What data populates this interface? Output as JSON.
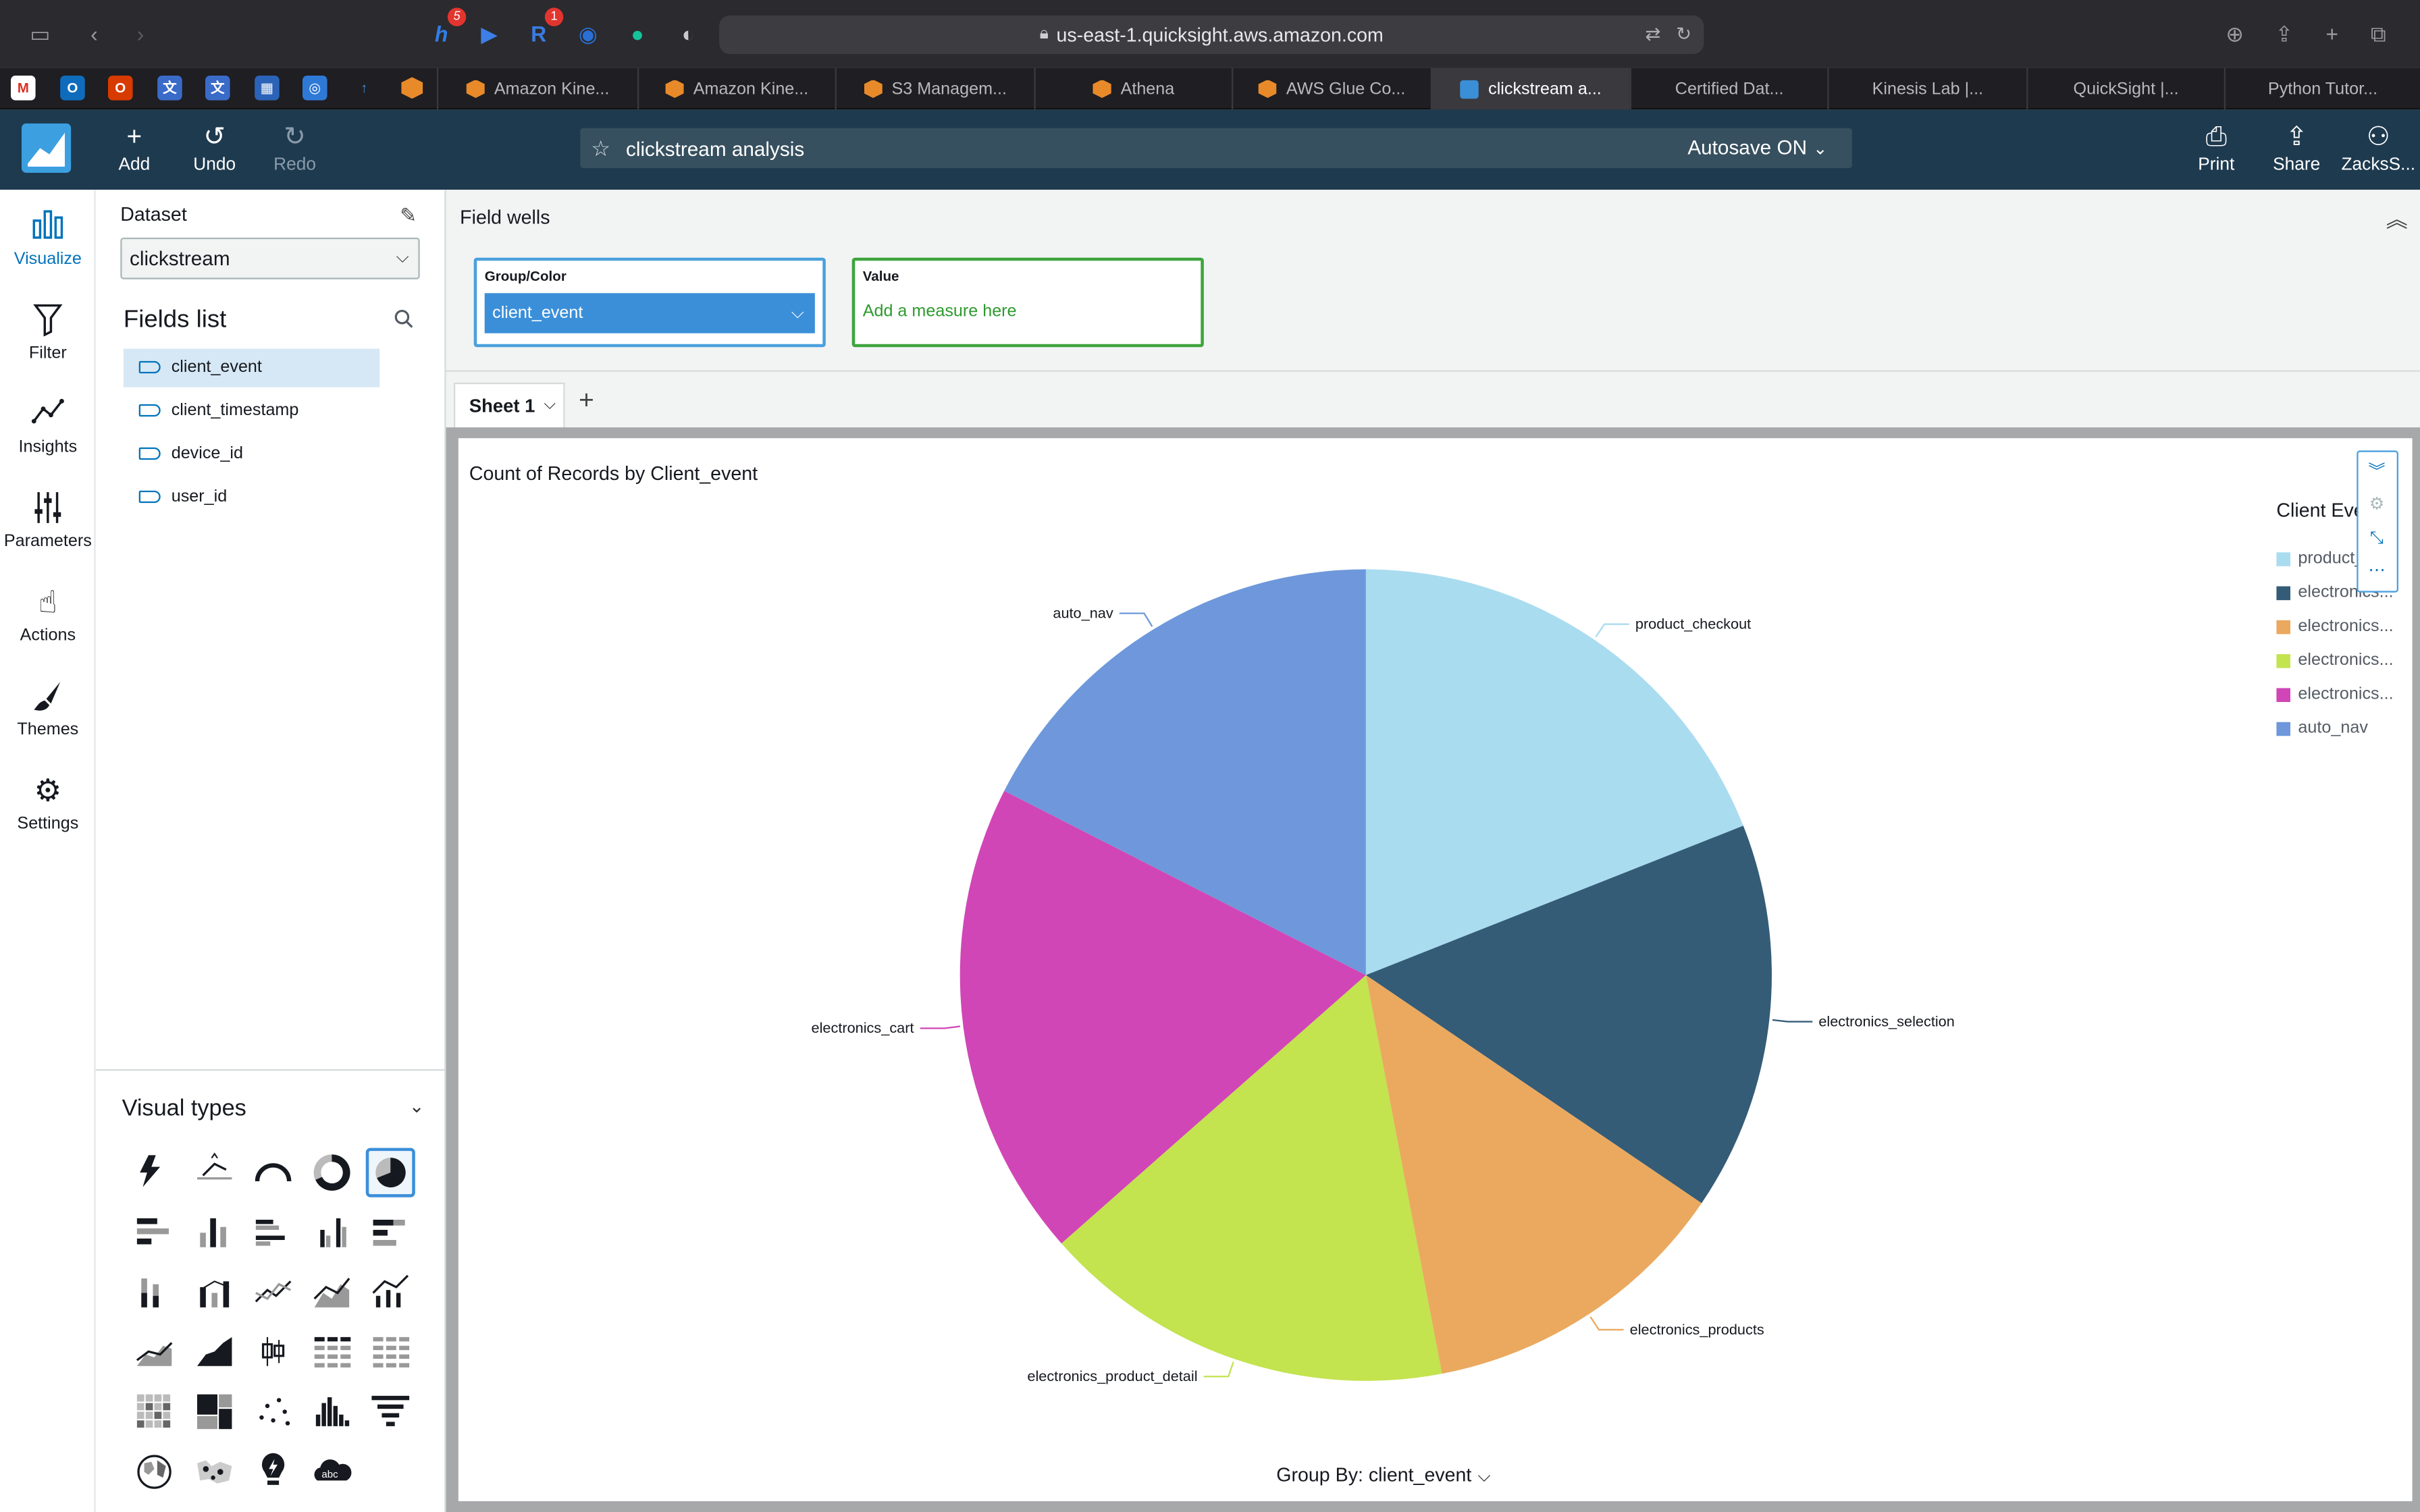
{
  "browser": {
    "url": "us-east-1.quicksight.aws.amazon.com",
    "extensions": [
      {
        "icon": "honey-icon",
        "badge": "5"
      },
      {
        "icon": "forward-icon",
        "badge": ""
      },
      {
        "icon": "r-icon",
        "badge": "1"
      },
      {
        "icon": "onepassword-icon",
        "badge": ""
      },
      {
        "icon": "grammarly-icon",
        "badge": ""
      },
      {
        "icon": "shield-icon",
        "badge": ""
      }
    ],
    "tabs": [
      {
        "label": "Amazon Kine...",
        "favicon": "aws",
        "active": false
      },
      {
        "label": "Amazon Kine...",
        "favicon": "aws",
        "active": false
      },
      {
        "label": "S3 Managem...",
        "favicon": "aws",
        "active": false
      },
      {
        "label": "Athena",
        "favicon": "aws",
        "active": false
      },
      {
        "label": "AWS Glue Co...",
        "favicon": "aws",
        "active": false
      },
      {
        "label": "clickstream a...",
        "favicon": "quicksight",
        "active": true
      },
      {
        "label": "Certified Dat...",
        "favicon": "none",
        "active": false
      },
      {
        "label": "Kinesis Lab |...",
        "favicon": "none",
        "active": false
      },
      {
        "label": "QuickSight |...",
        "favicon": "none",
        "active": false
      },
      {
        "label": "Python Tutor...",
        "favicon": "none",
        "active": false
      }
    ]
  },
  "header": {
    "add_label": "Add",
    "undo_label": "Undo",
    "redo_label": "Redo",
    "analysis_name": "clickstream analysis",
    "autosave_label": "Autosave ON",
    "print_label": "Print",
    "share_label": "Share",
    "user_label": "ZacksS..."
  },
  "rail": {
    "visualize": "Visualize",
    "filter": "Filter",
    "insights": "Insights",
    "parameters": "Parameters",
    "actions": "Actions",
    "themes": "Themes",
    "settings": "Settings"
  },
  "panel": {
    "dataset_label": "Dataset",
    "dataset_value": "clickstream",
    "fields_title": "Fields list",
    "fields": [
      "client_event",
      "client_timestamp",
      "device_id",
      "user_id"
    ],
    "visual_types_title": "Visual types"
  },
  "field_wells": {
    "label": "Field wells",
    "group_label": "Group/Color",
    "group_value": "client_event",
    "value_label": "Value",
    "value_placeholder": "Add a measure here"
  },
  "sheet": {
    "tab_label": "Sheet 1"
  },
  "visual": {
    "group_by_label": "Group By: client_event",
    "legend_title": "Client Eve",
    "legend_items": [
      {
        "label": "product_...",
        "color": "#aadcf0"
      },
      {
        "label": "electronics...",
        "color": "#345c77"
      },
      {
        "label": "electronics...",
        "color": "#eaa95f"
      },
      {
        "label": "electronics...",
        "color": "#c3e34f"
      },
      {
        "label": "electronics...",
        "color": "#d146b6"
      },
      {
        "label": "auto_nav",
        "color": "#6e98db"
      }
    ]
  },
  "chart_data": {
    "type": "pie",
    "title": "Count of Records by Client_event",
    "categories": [
      "product_checkout",
      "electronics_selection",
      "electronics_products",
      "electronics_product_detail",
      "electronics_cart",
      "auto_nav"
    ],
    "values": [
      19.0,
      15.5,
      12.5,
      16.5,
      19.0,
      17.5
    ],
    "colors": [
      "#aadcf0",
      "#345c77",
      "#eaa95f",
      "#c3e34f",
      "#d146b6",
      "#6e98db"
    ],
    "legend": "right"
  }
}
